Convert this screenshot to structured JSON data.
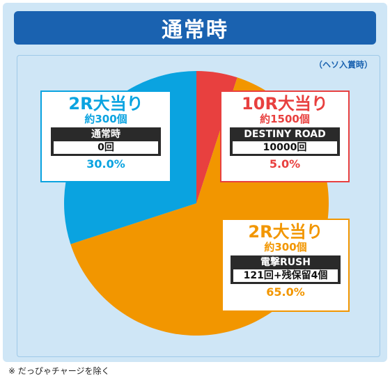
{
  "header": {
    "title": "通常時"
  },
  "note": "（ヘソ入賞時）",
  "footnote": "※ だっぴゃチャージを除く",
  "colors": {
    "blue": "#0aa3e0",
    "red": "#e8403f",
    "orange": "#f29600"
  },
  "chart_data": {
    "type": "pie",
    "title": "通常時",
    "slices": [
      {
        "label": "10R大当り",
        "sub": "約1500個",
        "state": "DESTINY ROAD",
        "count": "10000回",
        "value": 5.0,
        "pct_label": "5.0%",
        "color": "#e8403f"
      },
      {
        "label": "2R大当り",
        "sub": "約300個",
        "state": "電撃RUSH",
        "count": "121回+残保留4個",
        "value": 65.0,
        "pct_label": "65.0%",
        "color": "#f29600"
      },
      {
        "label": "2R大当り",
        "sub": "約300個",
        "state": "通常時",
        "count": "0回",
        "value": 30.0,
        "pct_label": "30.0%",
        "color": "#0aa3e0"
      }
    ]
  }
}
